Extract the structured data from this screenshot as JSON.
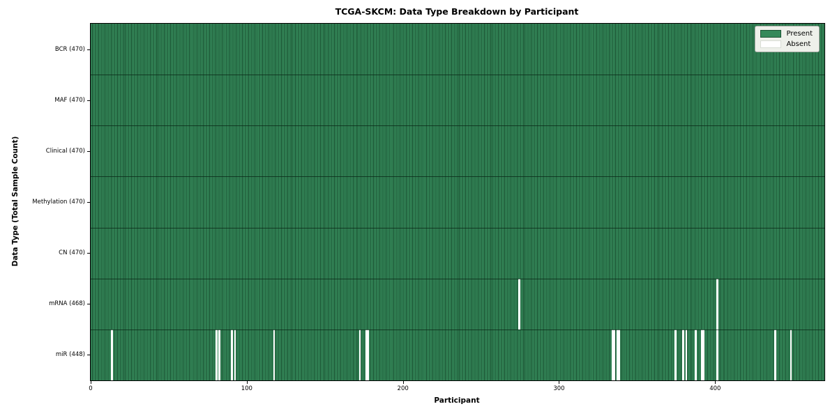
{
  "chart_data": {
    "type": "heatmap",
    "title": "TCGA-SKCM: Data Type Breakdown by Participant",
    "xlabel": "Participant",
    "ylabel": "Data Type (Total Sample Count)",
    "x_range": [
      0,
      470
    ],
    "x_ticks": [
      0,
      100,
      200,
      300,
      400
    ],
    "n_participants": 470,
    "grid": false,
    "legend_position": "upper right",
    "legend": [
      {
        "label": "Present",
        "color": "#35895a"
      },
      {
        "label": "Absent",
        "color": "#ffffff"
      }
    ],
    "colors": {
      "present_fill": "#35895a",
      "present_edge": "#194f30",
      "absent_fill": "#ffffff",
      "separator": "#0a2616"
    },
    "rows": [
      {
        "label": "BCR (470)",
        "data_type": "BCR",
        "present_count": 470,
        "absent_participants": []
      },
      {
        "label": "MAF (470)",
        "data_type": "MAF",
        "present_count": 470,
        "absent_participants": []
      },
      {
        "label": "Clinical (470)",
        "data_type": "Clinical",
        "present_count": 470,
        "absent_participants": []
      },
      {
        "label": "Methylation (470)",
        "data_type": "Methylation",
        "present_count": 470,
        "absent_participants": []
      },
      {
        "label": "CN (470)",
        "data_type": "CN",
        "present_count": 470,
        "absent_participants": []
      },
      {
        "label": "mRNA (468)",
        "data_type": "mRNA",
        "present_count": 468,
        "absent_participants": [
          274,
          401
        ]
      },
      {
        "label": "miR (448)",
        "data_type": "miR",
        "present_count": 448,
        "absent_participants": [
          13,
          80,
          82,
          90,
          92,
          117,
          172,
          176,
          177,
          334,
          335,
          337,
          338,
          374,
          379,
          381,
          387,
          391,
          392,
          401,
          438,
          448
        ]
      }
    ]
  }
}
